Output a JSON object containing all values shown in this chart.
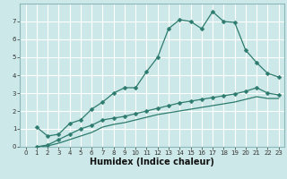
{
  "title": "",
  "xlabel": "Humidex (Indice chaleur)",
  "bg_color": "#cde8e8",
  "grid_color": "#ffffff",
  "line_color": "#2d7b6e",
  "xlim": [
    -0.5,
    23.5
  ],
  "ylim": [
    0,
    8
  ],
  "xticks": [
    0,
    1,
    2,
    3,
    4,
    5,
    6,
    7,
    8,
    9,
    10,
    11,
    12,
    13,
    14,
    15,
    16,
    17,
    18,
    19,
    20,
    21,
    22,
    23
  ],
  "yticks": [
    0,
    1,
    2,
    3,
    4,
    5,
    6,
    7
  ],
  "line1_x": [
    1,
    2,
    3,
    4,
    5,
    6,
    7,
    8,
    9,
    10,
    11,
    12,
    13,
    14,
    15,
    16,
    17,
    18,
    19,
    20,
    21,
    22,
    23
  ],
  "line1_y": [
    1.1,
    0.6,
    0.7,
    1.3,
    1.5,
    2.1,
    2.5,
    3.0,
    3.3,
    3.3,
    4.2,
    5.0,
    6.6,
    7.1,
    7.0,
    6.6,
    7.55,
    7.0,
    6.95,
    5.4,
    4.7,
    4.1,
    3.9
  ],
  "line2_x": [
    1,
    2,
    3,
    4,
    5,
    6,
    7,
    8,
    9,
    10,
    11,
    12,
    13,
    14,
    15,
    16,
    17,
    18,
    19,
    20,
    21,
    22,
    23
  ],
  "line2_y": [
    0.0,
    0.1,
    0.4,
    0.7,
    1.0,
    1.2,
    1.5,
    1.6,
    1.7,
    1.85,
    2.0,
    2.15,
    2.3,
    2.45,
    2.55,
    2.65,
    2.75,
    2.85,
    2.95,
    3.1,
    3.3,
    3.0,
    2.9
  ],
  "line3_x": [
    1,
    2,
    3,
    4,
    5,
    6,
    7,
    8,
    9,
    10,
    11,
    12,
    13,
    14,
    15,
    16,
    17,
    18,
    19,
    20,
    21,
    22,
    23
  ],
  "line3_y": [
    0.0,
    0.05,
    0.2,
    0.4,
    0.6,
    0.8,
    1.1,
    1.25,
    1.35,
    1.5,
    1.65,
    1.8,
    1.9,
    2.0,
    2.1,
    2.2,
    2.3,
    2.4,
    2.5,
    2.65,
    2.8,
    2.7,
    2.7
  ],
  "border_color": "#8ab8b8",
  "tick_color": "#333333",
  "xlabel_fontsize": 7,
  "tick_fontsize": 5
}
